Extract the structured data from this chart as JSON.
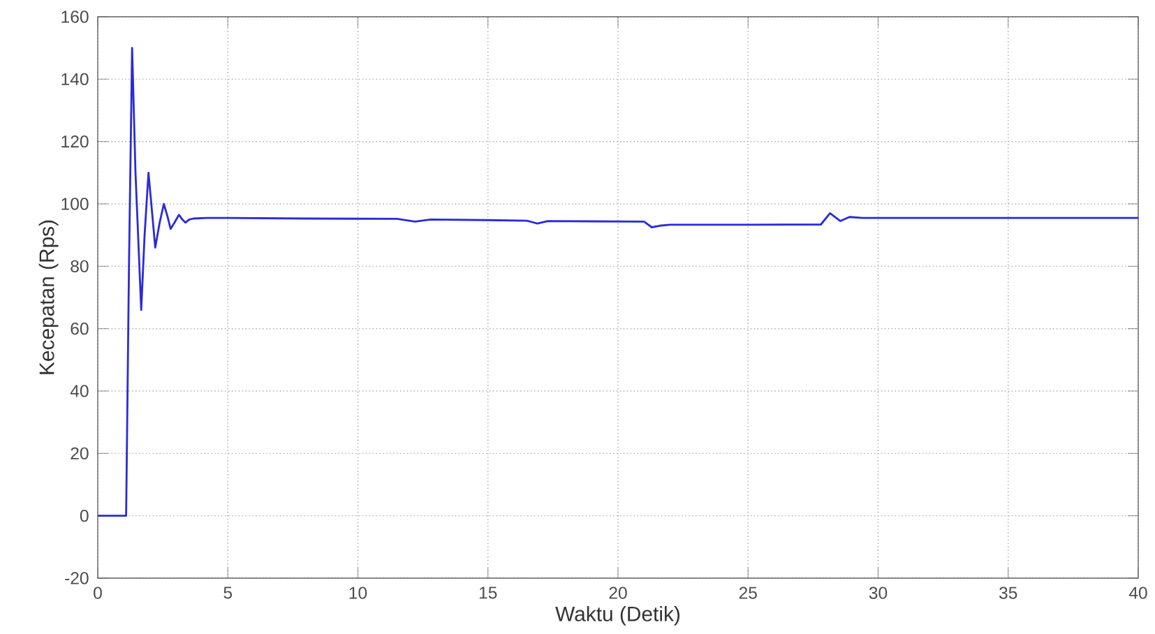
{
  "chart_data": {
    "type": "line",
    "xlabel": "Waktu (Detik)",
    "ylabel": "Kecepatan (Rps)",
    "xlim": [
      0,
      40
    ],
    "xticks": [
      0,
      5,
      10,
      15,
      20,
      25,
      30,
      35,
      40
    ],
    "ylim": [
      -20,
      160
    ],
    "yticks": [
      -20,
      0,
      20,
      40,
      60,
      80,
      100,
      120,
      140,
      160
    ],
    "grid": true,
    "marker": "none",
    "line_style": "solid",
    "series": [
      {
        "color": "#2b2bd6",
        "x": [
          0,
          1.09,
          1.2,
          1.32,
          1.45,
          1.67,
          1.8,
          1.95,
          2.08,
          2.21,
          2.38,
          2.54,
          2.68,
          2.8,
          2.95,
          3.12,
          3.25,
          3.37,
          3.52,
          3.68,
          4.2,
          5,
          8,
          11.5,
          12.2,
          12.8,
          15,
          16.5,
          16.9,
          17.3,
          19,
          21.0,
          21.3,
          21.6,
          22,
          25,
          27.8,
          28.15,
          28.55,
          28.9,
          29.4,
          32,
          40
        ],
        "values": [
          0,
          0,
          80,
          150,
          110,
          66,
          90,
          110,
          98,
          86,
          94,
          100,
          96,
          92,
          94,
          96.5,
          95,
          94,
          95,
          95.3,
          95.5,
          95.5,
          95.3,
          95.2,
          94.3,
          95,
          94.8,
          94.6,
          93.7,
          94.5,
          94.4,
          94.3,
          92.5,
          93,
          93.3,
          93.3,
          93.4,
          97,
          94.5,
          95.8,
          95.5,
          95.5,
          95.5
        ]
      }
    ]
  }
}
